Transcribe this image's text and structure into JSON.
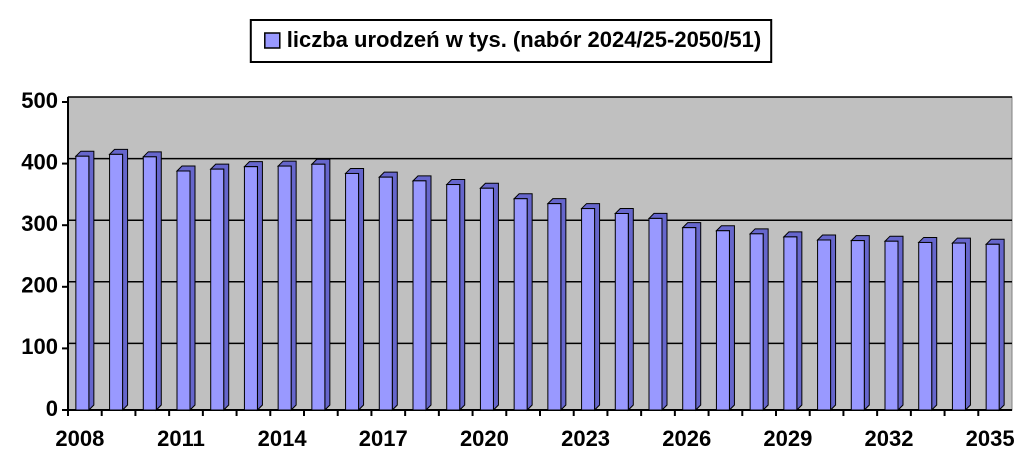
{
  "chart_data": {
    "type": "bar",
    "series": [
      {
        "name": "liczba urodzeń w tys. (nabór 2024/25-2050/51)",
        "color": "#9999ff",
        "values": [
          412,
          415,
          411,
          388,
          391,
          395,
          396,
          399,
          384,
          378,
          372,
          366,
          360,
          343,
          335,
          327,
          319,
          311,
          296,
          291,
          286,
          281,
          276,
          275,
          274,
          272,
          271,
          269
        ]
      }
    ],
    "categories": [
      "2008",
      null,
      null,
      "2011",
      null,
      null,
      "2014",
      null,
      null,
      "2017",
      null,
      null,
      "2020",
      null,
      null,
      "2023",
      null,
      null,
      "2026",
      null,
      null,
      "2029",
      null,
      null,
      "2032",
      null,
      null,
      "2035"
    ],
    "ylim": [
      0,
      500
    ],
    "yticks": [
      0,
      100,
      200,
      300,
      400,
      500
    ],
    "grid": true,
    "plot_background": "#c0c0c0",
    "legend": "top"
  }
}
